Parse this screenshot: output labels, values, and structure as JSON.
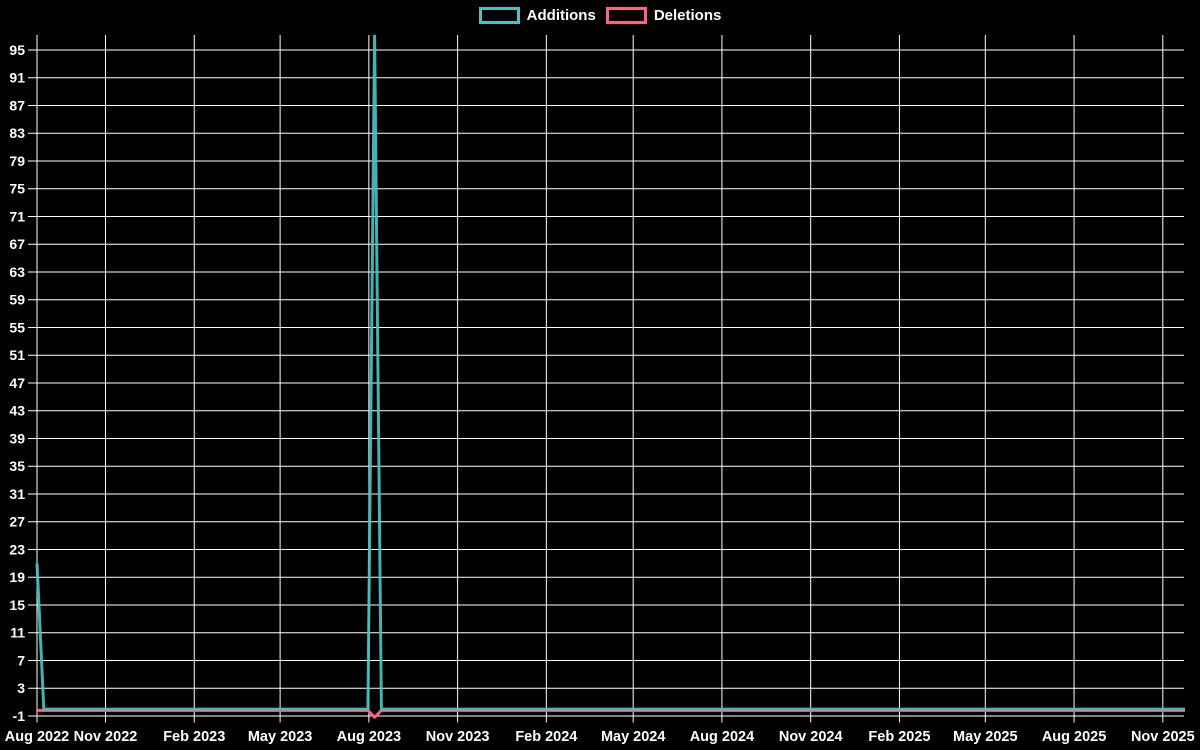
{
  "chart_data": {
    "type": "line",
    "title": "",
    "background_color": "#000000",
    "grid_color": "#ffffff",
    "axis_text_color": "#ffffff",
    "legend_position": "top-center",
    "x_axis": {
      "ticks": [
        {
          "date": "2022-08-22",
          "label": "Aug 2022"
        },
        {
          "date": "2022-11-01",
          "label": "Nov 2022"
        },
        {
          "date": "2023-02-01",
          "label": "Feb 2023"
        },
        {
          "date": "2023-05-01",
          "label": "May 2023"
        },
        {
          "date": "2023-08-01",
          "label": "Aug 2023"
        },
        {
          "date": "2023-11-01",
          "label": "Nov 2023"
        },
        {
          "date": "2024-02-01",
          "label": "Feb 2024"
        },
        {
          "date": "2024-05-01",
          "label": "May 2024"
        },
        {
          "date": "2024-08-01",
          "label": "Aug 2024"
        },
        {
          "date": "2024-11-01",
          "label": "Nov 2024"
        },
        {
          "date": "2025-02-01",
          "label": "Feb 2025"
        },
        {
          "date": "2025-05-01",
          "label": "May 2025"
        },
        {
          "date": "2025-08-01",
          "label": "Aug 2025"
        },
        {
          "date": "2025-11-01",
          "label": "Nov 2025"
        }
      ]
    },
    "y_axis": {
      "min": -1,
      "max": 97,
      "tick_step": 4,
      "ticks": [
        -1,
        3,
        7,
        11,
        15,
        19,
        23,
        27,
        31,
        35,
        39,
        43,
        47,
        51,
        55,
        59,
        63,
        67,
        71,
        75,
        79,
        83,
        87,
        91,
        95
      ]
    },
    "series": [
      {
        "name": "Additions",
        "color": "#4BC0C0",
        "points": [
          [
            "2022-08-22",
            21
          ],
          [
            "2022-08-29",
            0
          ],
          [
            "2023-07-31",
            0
          ],
          [
            "2023-08-07",
            97
          ],
          [
            "2023-08-14",
            0
          ],
          [
            "2025-11-24",
            0
          ]
        ]
      },
      {
        "name": "Deletions",
        "color": "#FF6384",
        "points": [
          [
            "2022-08-22",
            0
          ],
          [
            "2023-07-31",
            0
          ],
          [
            "2023-08-07",
            -1
          ],
          [
            "2023-08-14",
            0
          ],
          [
            "2025-11-24",
            0
          ]
        ]
      }
    ]
  }
}
